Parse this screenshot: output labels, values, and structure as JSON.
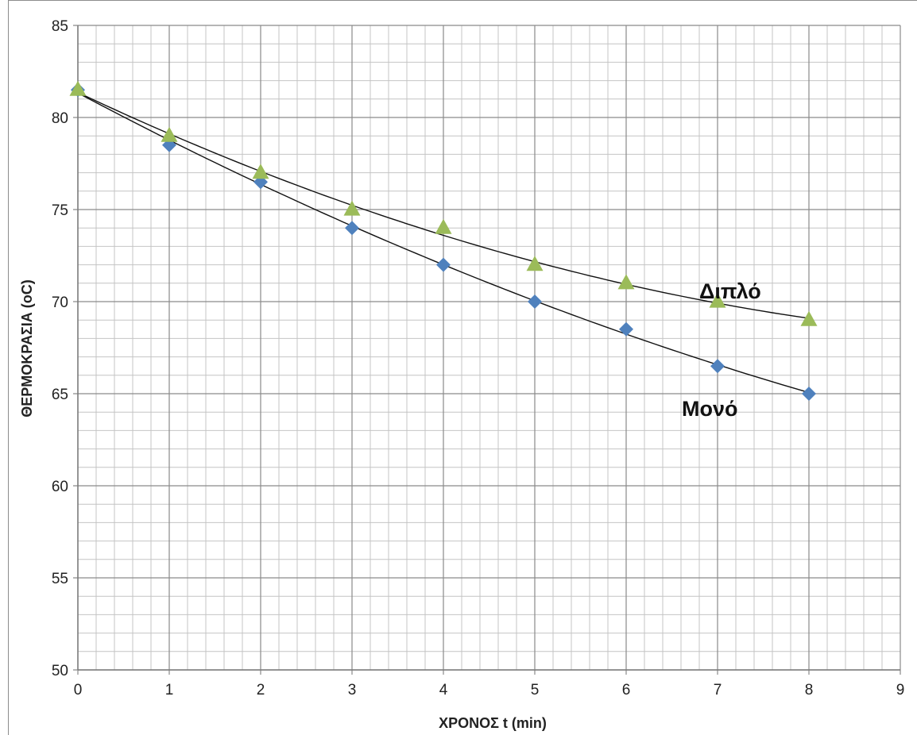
{
  "chart_data": {
    "type": "scatter",
    "title": "",
    "xlabel": "ΧΡΟΝΟΣ t  (min)",
    "ylabel": "ΘΕΡΜΟΚΡΑΣΙΑ  (oC)",
    "xlim": [
      0,
      9
    ],
    "ylim": [
      50,
      85
    ],
    "x_ticks": [
      "0",
      "1",
      "2",
      "3",
      "4",
      "5",
      "6",
      "7",
      "8",
      "9"
    ],
    "y_ticks": [
      "50",
      "55",
      "60",
      "65",
      "70",
      "75",
      "80",
      "85"
    ],
    "grid": true,
    "x_minor_step": 0.2,
    "y_minor_step": 1,
    "legend": "none",
    "series": [
      {
        "name": "Μονό",
        "marker": "diamond",
        "color": "#4f81bd",
        "x": [
          0,
          1,
          2,
          3,
          4,
          5,
          6,
          7,
          8
        ],
        "y": [
          81.5,
          78.5,
          76.5,
          74.0,
          72.0,
          70.0,
          68.5,
          66.5,
          65.0
        ],
        "trendline": true
      },
      {
        "name": "Διπλό",
        "marker": "triangle",
        "color": "#9bbb59",
        "x": [
          0,
          1,
          2,
          3,
          4,
          5,
          6,
          7,
          8
        ],
        "y": [
          81.5,
          79.0,
          77.0,
          75.0,
          74.0,
          72.0,
          71.0,
          70.0,
          69.0
        ],
        "trendline": true
      }
    ]
  }
}
